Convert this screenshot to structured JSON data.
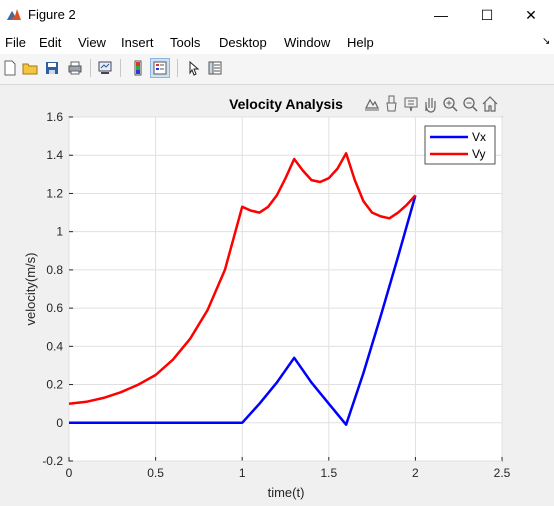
{
  "window": {
    "title": "Figure 2",
    "minimize_glyph": "—",
    "maximize_glyph": "☐",
    "close_glyph": "✕"
  },
  "menu": {
    "items": [
      "File",
      "Edit",
      "View",
      "Insert",
      "Tools",
      "Desktop",
      "Window",
      "Help"
    ],
    "overflow_glyph": "↘"
  },
  "toolbar": {
    "buttons": [
      "new-figure-icon",
      "open-file-icon",
      "save-icon",
      "print-icon",
      "link-plot-icon",
      "colorbar-icon",
      "legend-icon",
      "pointer-icon",
      "property-inspector-icon"
    ]
  },
  "axes_toolbar": {
    "icons": [
      "export-icon",
      "brush-icon",
      "datatip-icon",
      "pan-icon",
      "zoom-in-icon",
      "zoom-out-icon",
      "home-icon"
    ]
  },
  "chart_data": {
    "type": "line",
    "title": "Velocity Analysis",
    "xlabel": "time(t)",
    "ylabel": "velocity(m/s)",
    "xlim": [
      0,
      2.5
    ],
    "ylim": [
      -0.2,
      1.6
    ],
    "xticks": [
      "0",
      "0.5",
      "1",
      "1.5",
      "2",
      "2.5"
    ],
    "yticks": [
      "-0.2",
      "0",
      "0.2",
      "0.4",
      "0.6",
      "0.8",
      "1",
      "1.2",
      "1.4",
      "1.6"
    ],
    "grid": true,
    "legend": "top-right",
    "series": [
      {
        "name": "Vx",
        "color": "#0000ff",
        "x": [
          0,
          0.2,
          0.4,
          0.6,
          0.8,
          1.0,
          1.1,
          1.2,
          1.3,
          1.4,
          1.5,
          1.6,
          1.7,
          1.8,
          1.9,
          2.0
        ],
        "y": [
          0,
          0,
          0,
          0,
          0,
          0,
          0.1,
          0.21,
          0.34,
          0.21,
          0.1,
          -0.01,
          0.26,
          0.56,
          0.87,
          1.19
        ]
      },
      {
        "name": "Vy",
        "color": "#ff0000",
        "x": [
          0,
          0.1,
          0.2,
          0.3,
          0.4,
          0.5,
          0.6,
          0.7,
          0.8,
          0.9,
          1.0,
          1.05,
          1.1,
          1.15,
          1.2,
          1.25,
          1.3,
          1.35,
          1.4,
          1.45,
          1.5,
          1.55,
          1.6,
          1.65,
          1.7,
          1.75,
          1.8,
          1.85,
          1.9,
          1.95,
          2.0
        ],
        "y": [
          0.1,
          0.11,
          0.13,
          0.16,
          0.2,
          0.25,
          0.33,
          0.44,
          0.59,
          0.8,
          1.13,
          1.11,
          1.1,
          1.13,
          1.19,
          1.28,
          1.38,
          1.32,
          1.27,
          1.26,
          1.28,
          1.33,
          1.41,
          1.27,
          1.16,
          1.1,
          1.08,
          1.07,
          1.1,
          1.14,
          1.19
        ]
      }
    ]
  }
}
